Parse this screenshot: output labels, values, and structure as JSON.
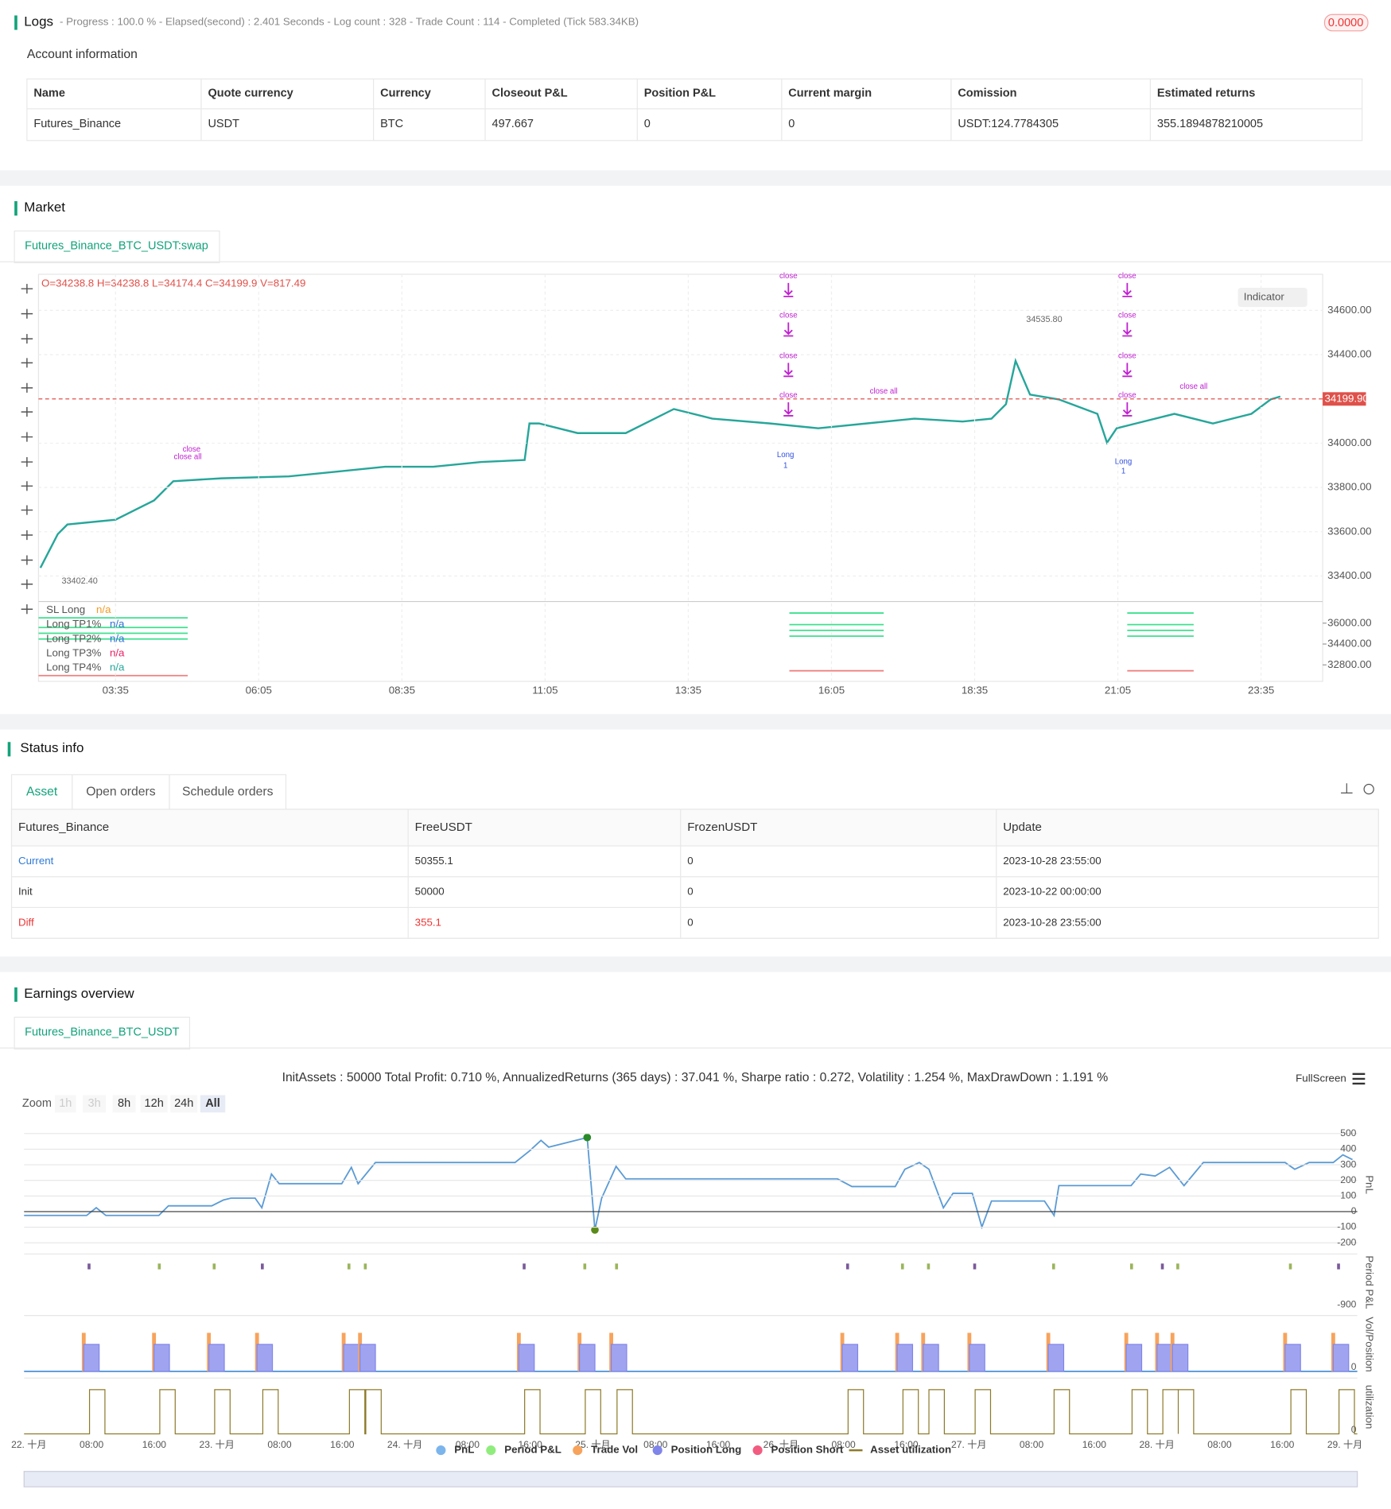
{
  "logs": {
    "title": "Logs",
    "progress": "- Progress : 100.0 % - Elapsed(second) : 2.401  Seconds - Log count : 328 - Trade Count : 114 - Completed (Tick 583.34KB)",
    "badge": "0.0000"
  },
  "account": {
    "title": "Account information",
    "columns": [
      "Name",
      "Quote currency",
      "Currency",
      "Closeout P&L",
      "Position P&L",
      "Current margin",
      "Comission",
      "Estimated returns"
    ],
    "rows": [
      [
        "Futures_Binance",
        "USDT",
        "BTC",
        "497.667",
        "0",
        "0",
        "USDT:124.7784305",
        "355.1894878210005"
      ]
    ]
  },
  "market": {
    "title": "Market",
    "tab": "Futures_Binance_BTC_USDT:swap",
    "ohlc": "O=34238.8 H=34238.8 L=34174.4 C=34199.9 V=817.49",
    "indicator": "Indicator",
    "price_ticks": [
      {
        "value": 34600,
        "label": "34600.00"
      },
      {
        "value": 34400,
        "label": "34400.00"
      },
      {
        "value": 34000,
        "label": "34000.00"
      },
      {
        "value": 33800,
        "label": "33800.00"
      },
      {
        "value": 33600,
        "label": "33600.00"
      },
      {
        "value": 33400,
        "label": "33400.00"
      }
    ],
    "current_price": {
      "value": 34199.9,
      "label": "34199.90"
    },
    "high_label": "34535.80",
    "low_label": "33402.40",
    "panel_ticks": [
      {
        "value": 36000,
        "label": "36000.00"
      },
      {
        "value": 34400,
        "label": "34400.00"
      },
      {
        "value": 32800,
        "label": "32800.00"
      }
    ],
    "time_ticks": [
      "03:35",
      "06:05",
      "08:35",
      "11:05",
      "13:35",
      "16:05",
      "18:35",
      "21:05",
      "23:35"
    ],
    "legend": [
      {
        "name": "SL Long",
        "value": "n/a",
        "color": "#f59a23"
      },
      {
        "name": "Long TP1%",
        "value": "n/a",
        "color": "#2f6fd6"
      },
      {
        "name": "Long TP2%",
        "value": "n/a",
        "color": "#2f6fd6"
      },
      {
        "name": "Long TP3%",
        "value": "n/a",
        "color": "#e91e63"
      },
      {
        "name": "Long TP4%",
        "value": "n/a",
        "color": "#26a69a"
      }
    ],
    "annotations": [
      "close",
      "close",
      "close",
      "close",
      "close",
      "close",
      "close",
      "close",
      "close all",
      "close all",
      "close",
      "close all",
      "Long",
      "1",
      "Long",
      "1"
    ]
  },
  "status": {
    "title": "Status info",
    "tabs": [
      "Asset",
      "Open orders",
      "Schedule orders"
    ],
    "columns": [
      "Futures_Binance",
      "FreeUSDT",
      "FrozenUSDT",
      "Update"
    ],
    "rows": [
      [
        "Current",
        "50355.1",
        "0",
        "2023-10-28 23:55:00"
      ],
      [
        "Init",
        "50000",
        "0",
        "2023-10-22 00:00:00"
      ],
      [
        "Diff",
        "355.1",
        "0",
        "2023-10-28 23:55:00"
      ]
    ]
  },
  "earnings": {
    "title": "Earnings overview",
    "tab": "Futures_Binance_BTC_USDT",
    "summary": "InitAssets : 50000 Total Profit: 0.710 %, AnnualizedReturns (365 days) : 37.041 %, Sharpe ratio : 0.272, Volatility : 1.254 %, MaxDrawDown : 1.191 %",
    "zoom_label": "Zoom",
    "zoom_buttons": [
      "1h",
      "3h",
      "8h",
      "12h",
      "24h",
      "All"
    ],
    "fullscreen": "FullScreen",
    "pnl_ticks": [
      500,
      400,
      300,
      200,
      100,
      0,
      -100,
      -200
    ],
    "period_tick": -900,
    "vol_tick": 0,
    "util_tick": 0,
    "panel_titles": [
      "PnL",
      "Period P&L",
      "Vol/Position",
      "utilization"
    ],
    "x_labels": [
      "22. 十月",
      "08:00",
      "16:00",
      "23. 十月",
      "08:00",
      "16:00",
      "24. 十月",
      "08:00",
      "16:00",
      "25. 十月",
      "08:00",
      "16:00",
      "26. 十月",
      "08:00",
      "16:00",
      "27. 十月",
      "08:00",
      "16:00",
      "28. 十月",
      "08:00",
      "16:00",
      "29. 十月"
    ],
    "legend": [
      {
        "name": "PnL",
        "color": "#7cb5ec",
        "symbol": "circle"
      },
      {
        "name": "Period P&L",
        "color": "#90ed7d",
        "symbol": "circle"
      },
      {
        "name": "Trade Vol",
        "color": "#f7a35c",
        "symbol": "circle"
      },
      {
        "name": "Position Long",
        "color": "#8085e9",
        "symbol": "circle"
      },
      {
        "name": "Position Short",
        "color": "#f15c80",
        "symbol": "circle"
      },
      {
        "name": "Asset utilization",
        "color": "#8d7a2a",
        "symbol": "line"
      }
    ]
  }
}
